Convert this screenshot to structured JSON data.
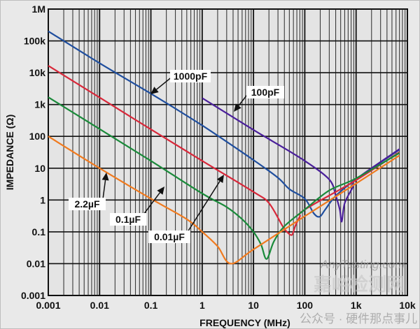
{
  "chart_data": {
    "type": "line",
    "title": "",
    "xlabel": "FREQUENCY (MHz)",
    "ylabel": "IMPEDANCE (Ω)",
    "x_scale": "log",
    "y_scale": "log",
    "xlim": [
      0.001,
      10000
    ],
    "ylim": [
      0.001,
      1000000
    ],
    "grid": true,
    "x_tick_labels": [
      "0.001",
      "0.01",
      "0.1",
      "1",
      "10",
      "100",
      "1k",
      "10k"
    ],
    "y_tick_labels": [
      "0.001",
      "0.01",
      "0.1",
      "1",
      "10",
      "100",
      "1k",
      "10k",
      "100k",
      "1M"
    ],
    "series": [
      {
        "name": "1000pF",
        "color": "#1f4e9e",
        "points": [
          [
            0.001,
            200000
          ],
          [
            0.01,
            20000
          ],
          [
            0.1,
            2200
          ],
          [
            1,
            220
          ],
          [
            10,
            18
          ],
          [
            30,
            5
          ],
          [
            50,
            2.2
          ],
          [
            100,
            1.1
          ],
          [
            150,
            0.38
          ],
          [
            195,
            0.3
          ],
          [
            250,
            0.5
          ],
          [
            400,
            1.35
          ],
          [
            1000,
            4.5
          ],
          [
            7000,
            38
          ]
        ]
      },
      {
        "name": "100pF",
        "color": "#4a1f9a",
        "points": [
          [
            1,
            1600
          ],
          [
            10,
            160
          ],
          [
            22,
            75
          ],
          [
            100,
            17
          ],
          [
            300,
            4.4
          ],
          [
            400,
            1.4
          ],
          [
            480,
            0.5
          ],
          [
            525,
            0.21
          ],
          [
            600,
            0.8
          ],
          [
            870,
            2.6
          ],
          [
            1000,
            4.5
          ],
          [
            7000,
            40
          ]
        ]
      },
      {
        "name": "0.01µF",
        "color": "#d8283a",
        "points": [
          [
            0.001,
            16600
          ],
          [
            0.01,
            1660
          ],
          [
            0.1,
            166
          ],
          [
            1,
            17
          ],
          [
            10,
            1.8
          ],
          [
            20,
            0.8
          ],
          [
            37,
            0.15
          ],
          [
            45,
            0.1
          ],
          [
            56,
            0.08
          ],
          [
            65,
            0.15
          ],
          [
            80,
            0.3
          ],
          [
            100,
            0.5
          ],
          [
            1000,
            4.2
          ],
          [
            7000,
            32
          ]
        ]
      },
      {
        "name": "0.1µF",
        "color": "#1a8a3a",
        "points": [
          [
            0.001,
            1700
          ],
          [
            0.01,
            170
          ],
          [
            0.1,
            17
          ],
          [
            1,
            1.6
          ],
          [
            3,
            0.6
          ],
          [
            6,
            0.25
          ],
          [
            10,
            0.1
          ],
          [
            14,
            0.04
          ],
          [
            18,
            0.014
          ],
          [
            25,
            0.05
          ],
          [
            40,
            0.15
          ],
          [
            100,
            0.5
          ],
          [
            300,
            2
          ],
          [
            1000,
            4.8
          ],
          [
            7000,
            30
          ]
        ]
      },
      {
        "name": "2.2µF",
        "color": "#f07a1e",
        "points": [
          [
            0.001,
            100
          ],
          [
            0.01,
            10
          ],
          [
            0.1,
            1.1
          ],
          [
            0.5,
            0.25
          ],
          [
            1,
            0.1
          ],
          [
            2,
            0.035
          ],
          [
            3.6,
            0.01
          ],
          [
            10,
            0.028
          ],
          [
            100,
            0.31
          ],
          [
            1000,
            3.3
          ],
          [
            7000,
            25
          ]
        ]
      }
    ],
    "annotations": [
      "1000pF",
      "100pF",
      "2.2µF",
      "0.1µF",
      "0.01µF"
    ]
  },
  "watermark": {
    "line1": "公众号 · 硬件那点事儿",
    "line2": "嘉峪检测网",
    "line3": "AnyTesting.com"
  }
}
